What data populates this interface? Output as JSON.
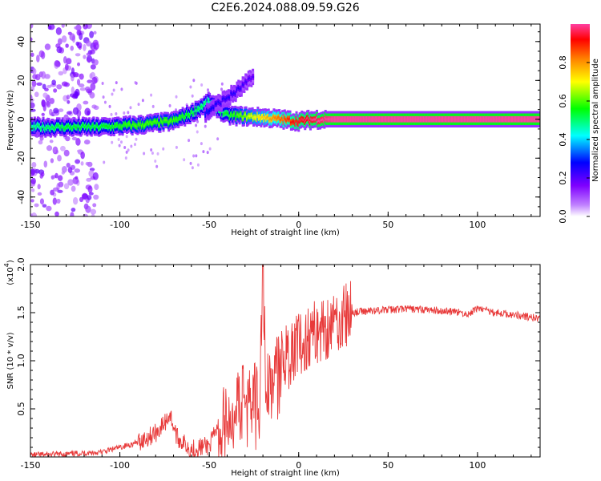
{
  "title": "C2E6.2024.088.09.59.G26",
  "colors": {
    "snr_line": "#e83a3a",
    "colormap": [
      "#ffffff",
      "#7f00ff",
      "#0000ff",
      "#00ffff",
      "#00ff00",
      "#ffff00",
      "#ff8000",
      "#ff0000"
    ]
  },
  "chart_data": [
    {
      "type": "heatmap",
      "title": "",
      "xlabel": "Height of straight line (km)",
      "ylabel": "Frequency (Hz)",
      "xlim": [
        -150,
        135
      ],
      "ylim": [
        -50,
        49
      ],
      "xticks": [
        -150,
        -100,
        -50,
        0,
        50,
        100
      ],
      "yticks": [
        -40,
        -20,
        0,
        20,
        40
      ],
      "colorbar": {
        "label": "Normalized spectral amplitude",
        "range": [
          0.0,
          1.0
        ],
        "ticks": [
          0.0,
          0.2,
          0.4,
          0.6,
          0.8
        ]
      },
      "ridges": [
        {
          "description_points_x": [
            -150,
            -130,
            -110,
            -90,
            -70,
            -60,
            -50,
            -40,
            -20,
            0,
            10,
            20,
            50,
            100,
            135
          ],
          "freq_y": [
            -4,
            -4,
            -4,
            -3,
            -1,
            3,
            9,
            2,
            1,
            -1,
            0,
            0,
            0,
            0,
            0
          ],
          "amplitude": [
            0.45,
            0.5,
            0.5,
            0.55,
            0.55,
            0.5,
            0.45,
            0.5,
            0.7,
            0.9,
            0.95,
            1.0,
            1.0,
            1.0,
            1.0
          ]
        },
        {
          "description_points_x": [
            -52,
            -45,
            -35,
            -25
          ],
          "freq_y": [
            3,
            8,
            14,
            22
          ],
          "amplitude": [
            0.25,
            0.2,
            0.2,
            0.15
          ]
        }
      ]
    },
    {
      "type": "line",
      "title": "",
      "xlabel": "Height of straight line (km)",
      "ylabel": "SNR (10 * v/v)",
      "y_multiplier": "(x10^4)",
      "xlim": [
        -150,
        135
      ],
      "ylim": [
        0.0,
        2.0
      ],
      "xticks": [
        -150,
        -100,
        -50,
        0,
        50,
        100
      ],
      "yticks": [
        0.5,
        1.0,
        1.5,
        2.0
      ],
      "series": [
        {
          "x": [
            -150,
            -130,
            -110,
            -100,
            -90,
            -80,
            -75,
            -72,
            -68,
            -60,
            -50,
            -45,
            -40,
            -35,
            -30,
            -25,
            -22,
            -20,
            -18,
            -15,
            -10,
            -5,
            0,
            5,
            10,
            15,
            20,
            25,
            30,
            40,
            50,
            60,
            70,
            80,
            90,
            95,
            100,
            110,
            120,
            130,
            135
          ],
          "y": [
            0.02,
            0.03,
            0.05,
            0.1,
            0.15,
            0.25,
            0.35,
            0.45,
            0.2,
            0.08,
            0.12,
            0.3,
            0.45,
            0.55,
            0.65,
            0.75,
            0.5,
            2.0,
            0.7,
            0.9,
            1.0,
            1.1,
            1.15,
            1.25,
            1.3,
            1.35,
            1.4,
            1.45,
            1.5,
            1.52,
            1.53,
            1.54,
            1.53,
            1.52,
            1.5,
            1.48,
            1.55,
            1.5,
            1.48,
            1.45,
            1.44
          ]
        }
      ]
    }
  ]
}
